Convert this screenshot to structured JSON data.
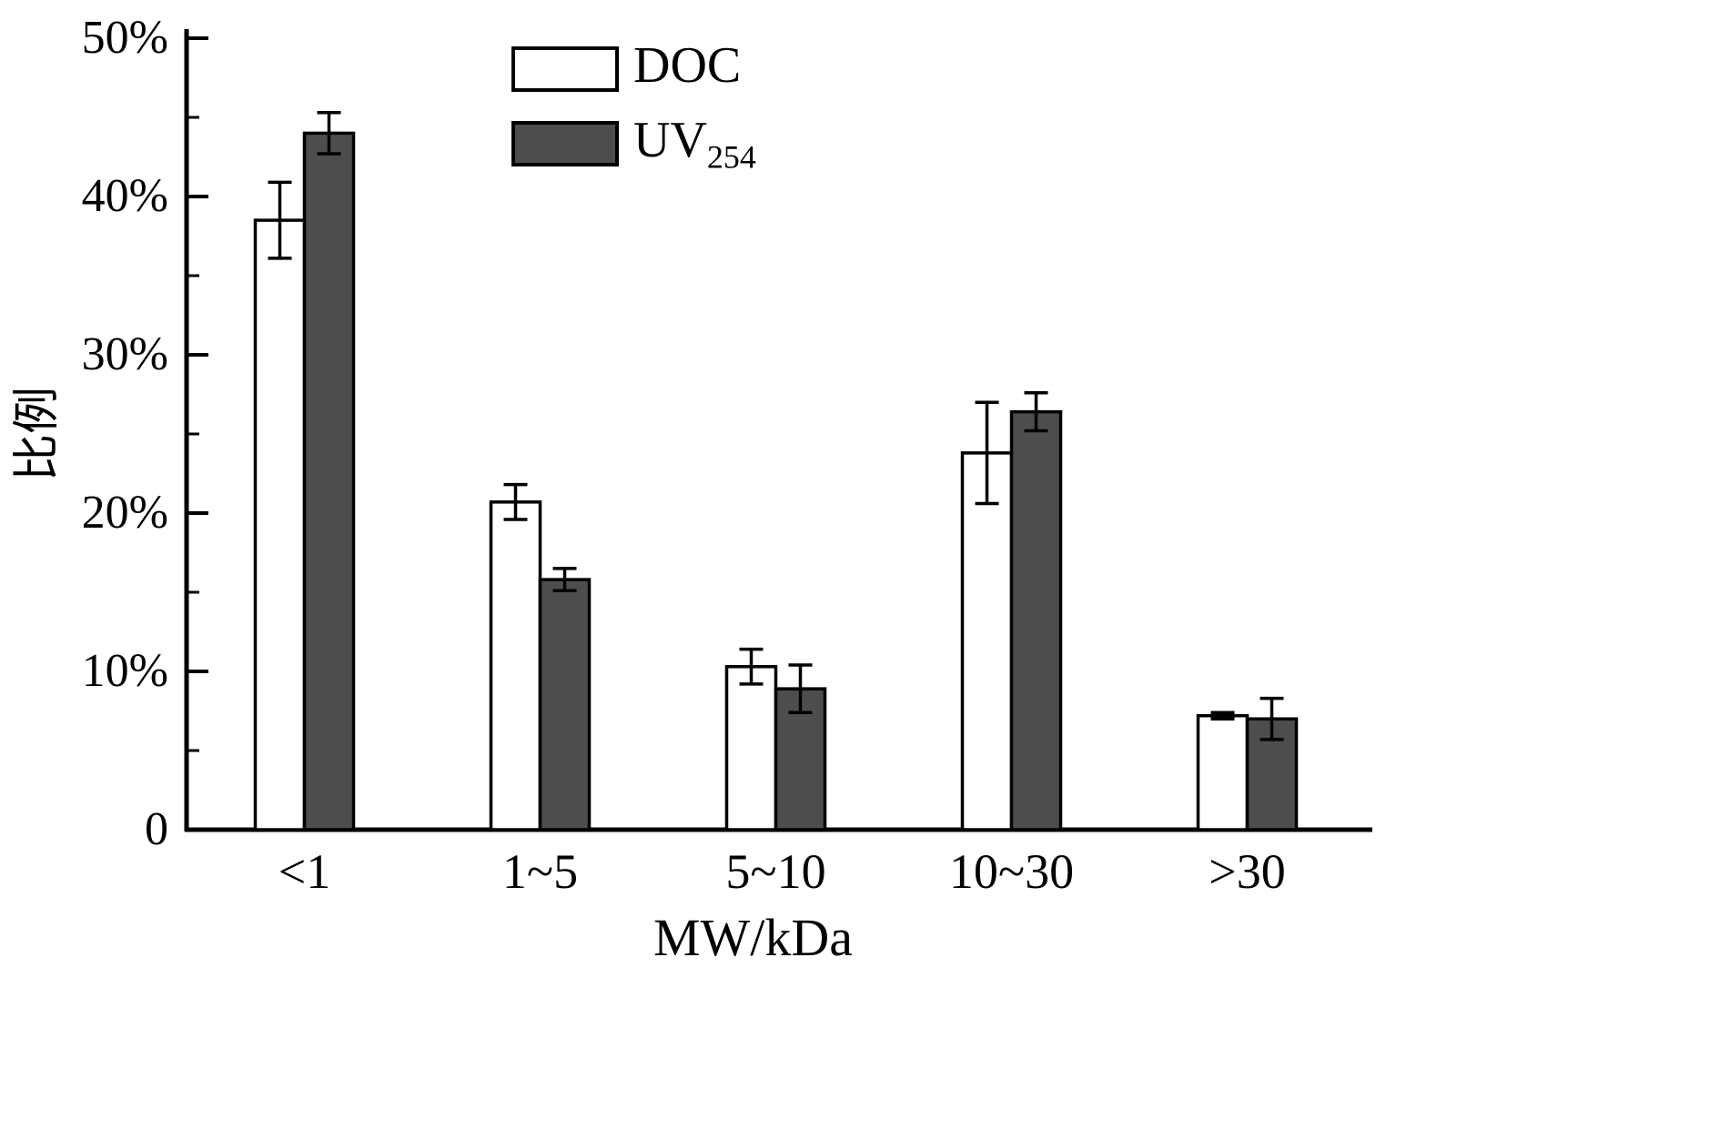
{
  "chart_data": {
    "type": "bar",
    "title": "",
    "categories": [
      "<1",
      "1~5",
      "5~10",
      "10~30",
      ">30"
    ],
    "series": [
      {
        "name": "DOC",
        "color": "#ffffff",
        "values": [
          38.5,
          20.7,
          10.3,
          23.8,
          7.2
        ],
        "errors": [
          2.4,
          1.1,
          1.1,
          3.2,
          0.2
        ]
      },
      {
        "name": "UV254",
        "color": "#4d4d4d",
        "values": [
          44.0,
          15.8,
          8.9,
          26.4,
          7.0
        ],
        "errors": [
          1.3,
          0.7,
          1.5,
          1.2,
          1.3
        ]
      }
    ],
    "xlabel": "MW/kDa",
    "ylabel": "比例",
    "ylim": [
      0,
      50
    ],
    "yticks": [
      0,
      10,
      20,
      30,
      40,
      50
    ],
    "ytick_labels": [
      "0",
      "10%",
      "20%",
      "30%",
      "40%",
      "50%"
    ],
    "minor_tick_step": 5,
    "grid": false,
    "legend_position": "top-center",
    "axis_color": "#000000",
    "error_bar_color": "#000000"
  },
  "legend": {
    "items": [
      {
        "label_base": "DOC",
        "label_sub": ""
      },
      {
        "label_base": "UV",
        "label_sub": "254"
      }
    ]
  }
}
